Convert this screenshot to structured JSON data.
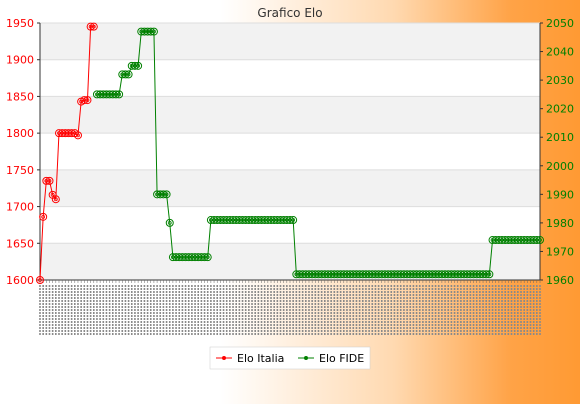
{
  "chart_data": {
    "type": "line",
    "title": "Grafico Elo",
    "y_left": {
      "min": 1600,
      "max": 1950,
      "ticks": [
        1600,
        1650,
        1700,
        1750,
        1800,
        1850,
        1900,
        1950
      ],
      "color": "#ff0000"
    },
    "y_right": {
      "min": 1960,
      "max": 2050,
      "ticks": [
        1960,
        1970,
        1980,
        1990,
        2000,
        2010,
        2020,
        2030,
        2040,
        2050
      ],
      "color": "#008000"
    },
    "x_labels_note": "rotated, illegible date labels",
    "grid": true,
    "legend": "bottom-center",
    "series": [
      {
        "name": "Elo Italia",
        "axis": "left",
        "color": "#ff0000",
        "values": [
          1600,
          1686,
          1735,
          1735,
          1716,
          1710,
          1800,
          1800,
          1800,
          1800,
          1800,
          1800,
          1797,
          1843,
          1845,
          1845,
          1945,
          1945
        ]
      },
      {
        "name": "Elo FIDE",
        "axis": "right",
        "color": "#008000",
        "start_index": 18,
        "segments": [
          [
            2025,
            8
          ],
          [
            2032,
            3
          ],
          [
            2035,
            3
          ],
          [
            2047,
            5
          ],
          [
            1990,
            4
          ],
          [
            1980,
            1
          ],
          [
            1968,
            12
          ],
          [
            1981,
            27
          ],
          [
            1962,
            62
          ],
          [
            1974,
            16
          ]
        ]
      }
    ]
  },
  "legend": {
    "italia": "Elo Italia",
    "fide": "Elo FIDE"
  }
}
